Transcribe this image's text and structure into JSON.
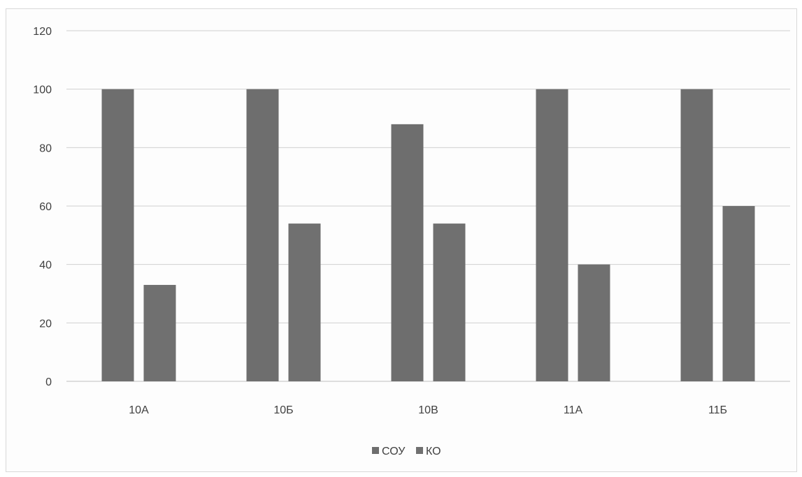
{
  "chart_data": {
    "type": "bar",
    "categories": [
      "10А",
      "10Б",
      "10В",
      "11А",
      "11Б"
    ],
    "series": [
      {
        "name": "СОУ",
        "values": [
          100,
          100,
          88,
          100,
          100
        ],
        "color": "#6e6e6e"
      },
      {
        "name": "КО",
        "values": [
          33,
          54,
          54,
          40,
          60
        ],
        "color": "#707070"
      }
    ],
    "ylim": [
      0,
      120
    ],
    "yticks": [
      0,
      20,
      40,
      60,
      80,
      100,
      120
    ],
    "title": "",
    "xlabel": "",
    "ylabel": "",
    "grid": true,
    "legend": "bottom"
  }
}
